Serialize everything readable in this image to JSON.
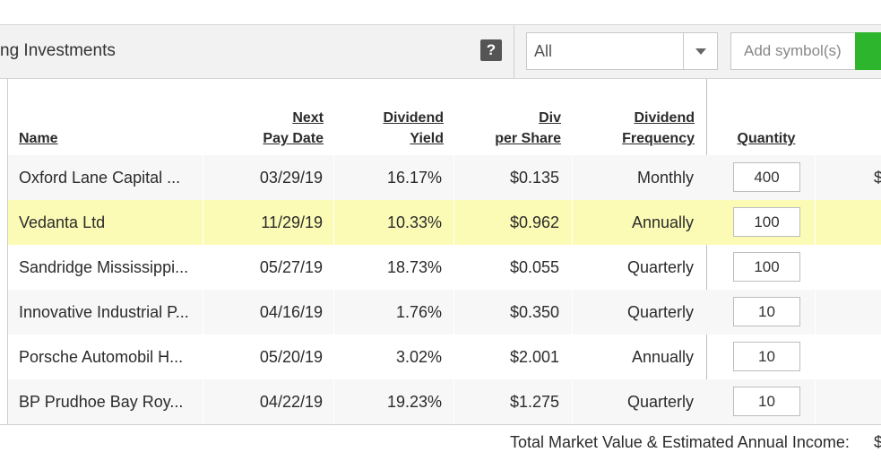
{
  "header": {
    "title": "ng Investments",
    "help_label": "?",
    "filter_value": "All",
    "symbol_placeholder": "Add symbol(s)"
  },
  "columns": {
    "name": [
      "Name"
    ],
    "next_pay_date": [
      "Next",
      "Pay Date"
    ],
    "dividend_yield": [
      "Dividend",
      "Yield"
    ],
    "div_per_share": [
      "Div",
      "per Share"
    ],
    "dividend_frequency": [
      "Dividend",
      "Frequency"
    ],
    "quantity": [
      "Quantity"
    ]
  },
  "rows": [
    {
      "name": "Oxford Lane Capital ...",
      "next_pay_date": "03/29/19",
      "dividend_yield": "16.17%",
      "div_per_share": "$0.135",
      "frequency": "Monthly",
      "quantity": "400",
      "extra": "$"
    },
    {
      "name": "Vedanta Ltd",
      "next_pay_date": "11/29/19",
      "dividend_yield": "10.33%",
      "div_per_share": "$0.962",
      "frequency": "Annually",
      "quantity": "100",
      "extra": ""
    },
    {
      "name": "Sandridge Mississippi...",
      "next_pay_date": "05/27/19",
      "dividend_yield": "18.73%",
      "div_per_share": "$0.055",
      "frequency": "Quarterly",
      "quantity": "100",
      "extra": ""
    },
    {
      "name": "Innovative Industrial P...",
      "next_pay_date": "04/16/19",
      "dividend_yield": "1.76%",
      "div_per_share": "$0.350",
      "frequency": "Quarterly",
      "quantity": "10",
      "extra": ""
    },
    {
      "name": "Porsche Automobil H...",
      "next_pay_date": "05/20/19",
      "dividend_yield": "3.02%",
      "div_per_share": "$2.001",
      "frequency": "Annually",
      "quantity": "10",
      "extra": ""
    },
    {
      "name": "BP Prudhoe Bay Roy...",
      "next_pay_date": "04/22/19",
      "dividend_yield": "19.23%",
      "div_per_share": "$1.275",
      "frequency": "Quarterly",
      "quantity": "10",
      "extra": ""
    }
  ],
  "highlighted_row": 1,
  "footer": {
    "total_label": "Total Market Value & Estimated Annual Income:",
    "total_value": "$"
  },
  "colors": {
    "highlight": "#fbfbb5",
    "add_button": "#2db52d",
    "toolbar": "#f2f2f2"
  }
}
